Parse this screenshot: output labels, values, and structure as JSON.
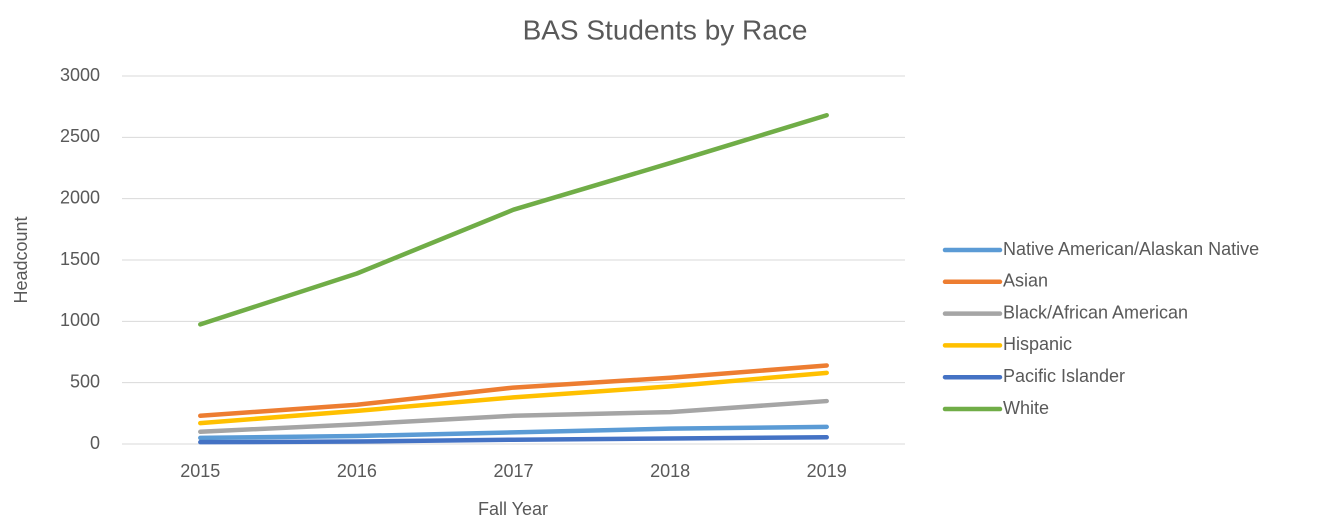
{
  "chart_data": {
    "type": "line",
    "title": "BAS Students by Race",
    "x_label": "Fall Year",
    "y_label": "Headcount",
    "categories": [
      "2015",
      "2016",
      "2017",
      "2018",
      "2019"
    ],
    "series": [
      {
        "name": "Native American/Alaskan Native",
        "color": "#5b9bd5",
        "values": [
          50,
          65,
          95,
          125,
          140
        ]
      },
      {
        "name": "Asian",
        "color": "#ed7d31",
        "values": [
          230,
          320,
          460,
          540,
          640
        ]
      },
      {
        "name": "Black/African American",
        "color": "#a5a5a5",
        "values": [
          100,
          160,
          230,
          260,
          350
        ]
      },
      {
        "name": "Hispanic",
        "color": "#ffc000",
        "values": [
          170,
          270,
          380,
          470,
          580
        ]
      },
      {
        "name": "Pacific Islander",
        "color": "#4472c4",
        "values": [
          15,
          20,
          35,
          45,
          55
        ]
      },
      {
        "name": "White",
        "color": "#70ad47",
        "values": [
          975,
          1390,
          1910,
          2290,
          2680
        ]
      }
    ],
    "ylim": [
      0,
      3000
    ],
    "yticks": [
      0,
      500,
      1000,
      1500,
      2000,
      2500,
      3000
    ],
    "grid": true,
    "legend": "right"
  }
}
